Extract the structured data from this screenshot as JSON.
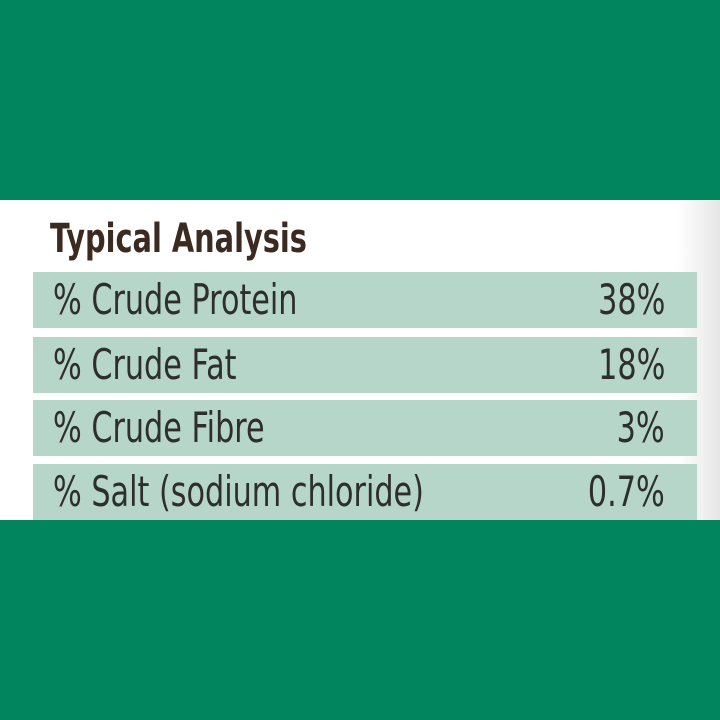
{
  "header": {
    "title": "Typical Analysis"
  },
  "table": {
    "rows": [
      [
        "% Crude Protein",
        "38%"
      ],
      [
        "% Crude Fat",
        "18%"
      ],
      [
        "% Crude Fibre",
        "3%"
      ],
      [
        "% Salt (sodium chloride)",
        "0.7%"
      ]
    ]
  }
}
